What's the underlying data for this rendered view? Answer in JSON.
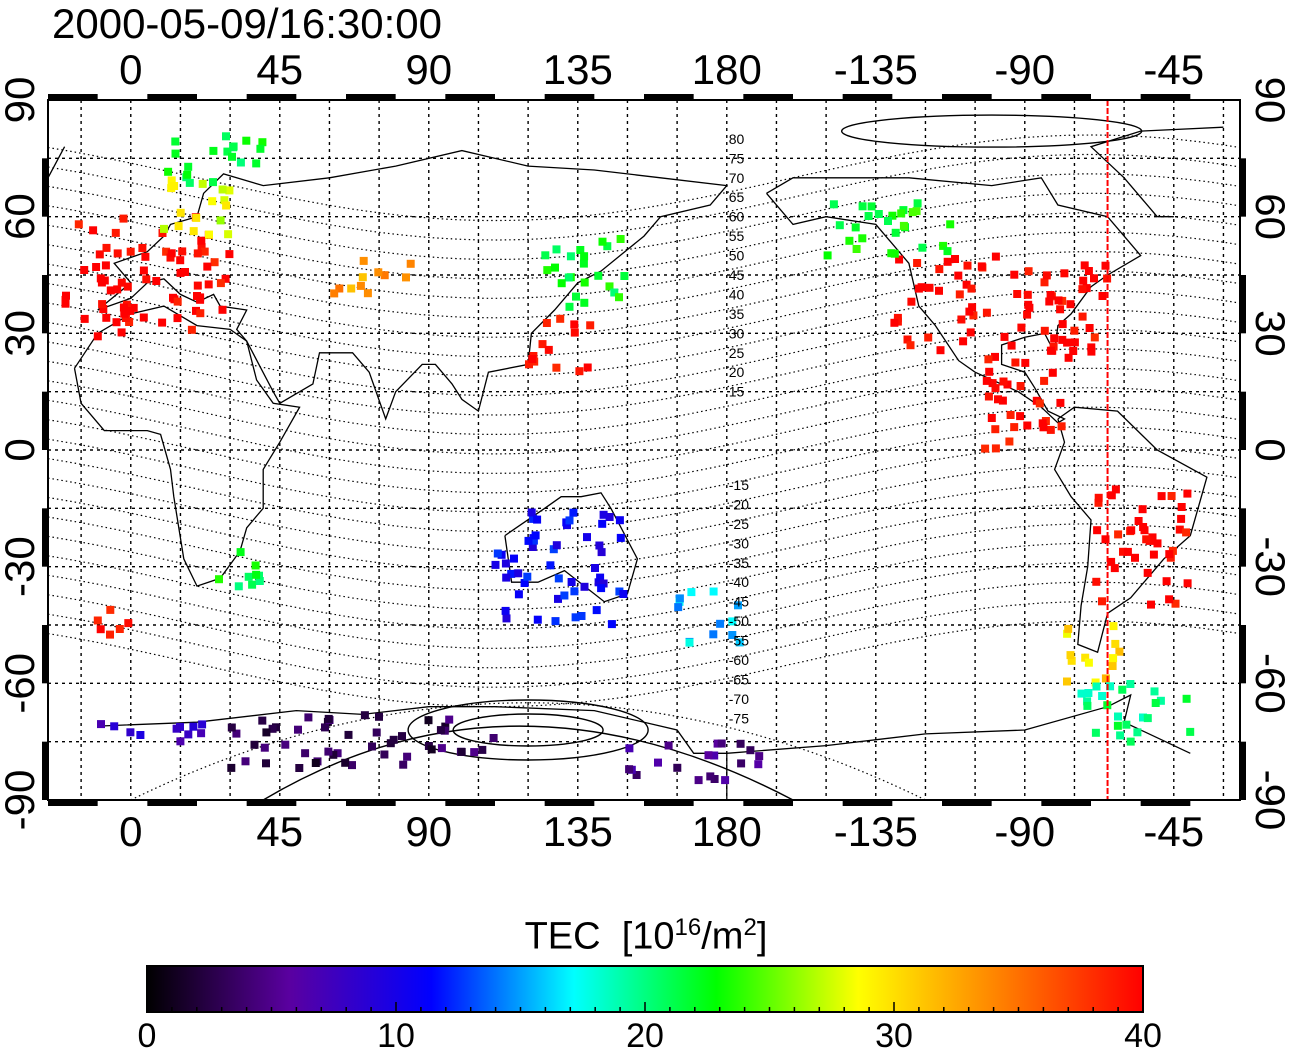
{
  "title": "2000-05-09/16:30:00",
  "map": {
    "x_tick_labels": [
      "0",
      "45",
      "90",
      "135",
      "180",
      "-135",
      "-90",
      "-45"
    ],
    "y_tick_labels": [
      "90",
      "60",
      "30",
      "0",
      "-30",
      "-60",
      "-90"
    ],
    "contour_labels_north": [
      "80",
      "75",
      "70",
      "65",
      "60",
      "55",
      "50",
      "45",
      "40",
      "35",
      "30",
      "25",
      "20",
      "15"
    ],
    "contour_labels_south": [
      "-15",
      "-20",
      "-25",
      "-30",
      "-35",
      "-40",
      "-45",
      "-50",
      "-55",
      "-60",
      "-65",
      "-70",
      "-75"
    ],
    "terminator_longitude": -65,
    "terminator_color": "#ff0000"
  },
  "colorbar": {
    "title_main": "TEC",
    "title_unit_prefix": "[10",
    "title_unit_exp": "16",
    "title_unit_mid": "/m",
    "title_unit_exp2": "2",
    "title_unit_suffix": "]",
    "tick_labels": [
      "0",
      "10",
      "20",
      "30",
      "40"
    ],
    "min": 0,
    "max": 40,
    "colors": [
      "#000000",
      "#5a00a0",
      "#0000ff",
      "#00ffff",
      "#00ff00",
      "#ffff00",
      "#ff8000",
      "#ff0000"
    ]
  },
  "chart_data": {
    "type": "heatmap",
    "title": "2000-05-09/16:30:00",
    "xlabel": "",
    "ylabel": "",
    "xlim": [
      -25,
      335
    ],
    "ylim": [
      -90,
      90
    ],
    "colorbar_label": "TEC [10^16/m^2]",
    "colorbar_range": [
      0,
      40
    ],
    "regions": [
      {
        "lon": [
          -20,
          30
        ],
        "lat": [
          30,
          60
        ],
        "tec": 40
      },
      {
        "lon": [
          5,
          30
        ],
        "lat": [
          55,
          70
        ],
        "tec": 28
      },
      {
        "lon": [
          10,
          40
        ],
        "lat": [
          68,
          82
        ],
        "tec": 22
      },
      {
        "lon": [
          -10,
          0
        ],
        "lat": [
          28,
          40
        ],
        "tec": 40
      },
      {
        "lon": [
          60,
          85
        ],
        "lat": [
          40,
          50
        ],
        "tec": 33
      },
      {
        "lon": [
          120,
          140
        ],
        "lat": [
          20,
          35
        ],
        "tec": 40
      },
      {
        "lon": [
          125,
          150
        ],
        "lat": [
          35,
          55
        ],
        "tec": 22
      },
      {
        "lon": [
          230,
          295
        ],
        "lat": [
          25,
          50
        ],
        "tec": 40
      },
      {
        "lon": [
          210,
          250
        ],
        "lat": [
          50,
          65
        ],
        "tec": 23
      },
      {
        "lon": [
          258,
          285
        ],
        "lat": [
          0,
          30
        ],
        "tec": 40
      },
      {
        "lon": [
          290,
          320
        ],
        "lat": [
          -40,
          -10
        ],
        "tec": 40
      },
      {
        "lon": [
          25,
          40
        ],
        "lat": [
          -38,
          -25
        ],
        "tec": 22
      },
      {
        "lon": [
          -10,
          0
        ],
        "lat": [
          -48,
          -40
        ],
        "tec": 40
      },
      {
        "lon": [
          110,
          150
        ],
        "lat": [
          -45,
          -15
        ],
        "tec": 11
      },
      {
        "lon": [
          165,
          185
        ],
        "lat": [
          -50,
          -35
        ],
        "tec": 16
      },
      {
        "lon": [
          280,
          300
        ],
        "lat": [
          -60,
          -45
        ],
        "tec": 30
      },
      {
        "lon": [
          285,
          320
        ],
        "lat": [
          -75,
          -60
        ],
        "tec": 20
      },
      {
        "lon": [
          -20,
          30
        ],
        "lat": [
          -75,
          -70
        ],
        "tec": 8
      },
      {
        "lon": [
          30,
          110
        ],
        "lat": [
          -82,
          -68
        ],
        "tec": 3
      },
      {
        "lon": [
          145,
          190
        ],
        "lat": [
          -85,
          -75
        ],
        "tec": 5
      }
    ]
  }
}
